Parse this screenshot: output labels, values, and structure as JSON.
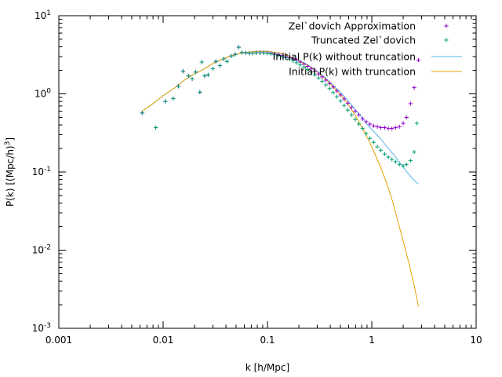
{
  "chart_data": {
    "type": "scatter",
    "xlabel": "k [h/Mpc]",
    "ylabel_parts": [
      "P(k) [(Mpc/h)",
      "3",
      "]"
    ],
    "x_scale": "log",
    "y_scale": "log",
    "xlim": [
      0.001,
      10
    ],
    "ylim": [
      0.001,
      10
    ],
    "grid": false,
    "legend_position": "top-right",
    "x_ticks": [
      {
        "value": 0.001,
        "label": "0.001"
      },
      {
        "value": 0.01,
        "label": "0.01"
      },
      {
        "value": 0.1,
        "label": "0.1"
      },
      {
        "value": 1,
        "label": "1"
      },
      {
        "value": 10,
        "label": "10"
      }
    ],
    "y_ticks": [
      {
        "value": 0.001,
        "base": "10",
        "exp": "-3"
      },
      {
        "value": 0.01,
        "base": "10",
        "exp": "-2"
      },
      {
        "value": 0.1,
        "base": "10",
        "exp": "-1"
      },
      {
        "value": 1,
        "base": "10",
        "exp": "0"
      },
      {
        "value": 10,
        "base": "10",
        "exp": "1"
      }
    ],
    "series": [
      {
        "name": "Zel`dovich Approximation",
        "style": "points",
        "color": "#9400d3",
        "points": [
          [
            0.0063,
            0.57
          ],
          [
            0.0085,
            0.37
          ],
          [
            0.0105,
            0.8
          ],
          [
            0.0125,
            0.87
          ],
          [
            0.014,
            1.25
          ],
          [
            0.0155,
            1.95
          ],
          [
            0.0175,
            1.7
          ],
          [
            0.019,
            1.55
          ],
          [
            0.0205,
            1.9
          ],
          [
            0.0225,
            1.05
          ],
          [
            0.0235,
            2.55
          ],
          [
            0.025,
            1.7
          ],
          [
            0.027,
            1.75
          ],
          [
            0.03,
            2.1
          ],
          [
            0.032,
            2.6
          ],
          [
            0.035,
            2.3
          ],
          [
            0.038,
            2.8
          ],
          [
            0.041,
            2.6
          ],
          [
            0.045,
            3.05
          ],
          [
            0.049,
            3.2
          ],
          [
            0.053,
            3.95
          ],
          [
            0.057,
            3.4
          ],
          [
            0.062,
            3.35
          ],
          [
            0.067,
            3.3
          ],
          [
            0.072,
            3.3
          ],
          [
            0.078,
            3.35
          ],
          [
            0.085,
            3.35
          ],
          [
            0.092,
            3.35
          ],
          [
            0.1,
            3.35
          ],
          [
            0.108,
            3.3
          ],
          [
            0.117,
            3.25
          ],
          [
            0.127,
            3.2
          ],
          [
            0.138,
            3.1
          ],
          [
            0.15,
            3.0
          ],
          [
            0.162,
            2.9
          ],
          [
            0.176,
            2.8
          ],
          [
            0.19,
            2.7
          ],
          [
            0.206,
            2.55
          ],
          [
            0.224,
            2.4
          ],
          [
            0.243,
            2.25
          ],
          [
            0.263,
            2.1
          ],
          [
            0.285,
            1.95
          ],
          [
            0.309,
            1.8
          ],
          [
            0.335,
            1.65
          ],
          [
            0.363,
            1.5
          ],
          [
            0.394,
            1.36
          ],
          [
            0.427,
            1.22
          ],
          [
            0.463,
            1.09
          ],
          [
            0.502,
            0.97
          ],
          [
            0.544,
            0.86
          ],
          [
            0.59,
            0.76
          ],
          [
            0.64,
            0.67
          ],
          [
            0.694,
            0.6
          ],
          [
            0.752,
            0.54
          ],
          [
            0.816,
            0.48
          ],
          [
            0.885,
            0.44
          ],
          [
            0.96,
            0.41
          ],
          [
            1.04,
            0.39
          ],
          [
            1.13,
            0.38
          ],
          [
            1.22,
            0.37
          ],
          [
            1.33,
            0.37
          ],
          [
            1.44,
            0.36
          ],
          [
            1.56,
            0.36
          ],
          [
            1.69,
            0.37
          ],
          [
            1.84,
            0.38
          ],
          [
            2.0,
            0.42
          ],
          [
            2.15,
            0.5
          ],
          [
            2.35,
            0.75
          ],
          [
            2.55,
            1.2
          ],
          [
            2.8,
            2.7
          ]
        ]
      },
      {
        "name": "Truncated Zel`dovich",
        "style": "points",
        "color": "#009e73",
        "points": [
          [
            0.0063,
            0.57
          ],
          [
            0.0085,
            0.37
          ],
          [
            0.0105,
            0.8
          ],
          [
            0.0125,
            0.87
          ],
          [
            0.014,
            1.25
          ],
          [
            0.0155,
            1.95
          ],
          [
            0.0175,
            1.7
          ],
          [
            0.019,
            1.55
          ],
          [
            0.0205,
            1.9
          ],
          [
            0.0225,
            1.05
          ],
          [
            0.0235,
            2.55
          ],
          [
            0.025,
            1.7
          ],
          [
            0.027,
            1.75
          ],
          [
            0.03,
            2.1
          ],
          [
            0.032,
            2.6
          ],
          [
            0.035,
            2.3
          ],
          [
            0.038,
            2.8
          ],
          [
            0.041,
            2.6
          ],
          [
            0.045,
            3.05
          ],
          [
            0.049,
            3.2
          ],
          [
            0.053,
            3.95
          ],
          [
            0.057,
            3.4
          ],
          [
            0.062,
            3.35
          ],
          [
            0.067,
            3.3
          ],
          [
            0.072,
            3.3
          ],
          [
            0.078,
            3.35
          ],
          [
            0.085,
            3.35
          ],
          [
            0.092,
            3.35
          ],
          [
            0.1,
            3.3
          ],
          [
            0.108,
            3.25
          ],
          [
            0.117,
            3.2
          ],
          [
            0.127,
            3.1
          ],
          [
            0.138,
            3.0
          ],
          [
            0.15,
            2.9
          ],
          [
            0.162,
            2.8
          ],
          [
            0.176,
            2.65
          ],
          [
            0.19,
            2.5
          ],
          [
            0.206,
            2.35
          ],
          [
            0.224,
            2.2
          ],
          [
            0.243,
            2.05
          ],
          [
            0.263,
            1.9
          ],
          [
            0.285,
            1.75
          ],
          [
            0.309,
            1.6
          ],
          [
            0.335,
            1.45
          ],
          [
            0.363,
            1.3
          ],
          [
            0.394,
            1.17
          ],
          [
            0.427,
            1.04
          ],
          [
            0.463,
            0.92
          ],
          [
            0.502,
            0.81
          ],
          [
            0.544,
            0.71
          ],
          [
            0.59,
            0.62
          ],
          [
            0.64,
            0.54
          ],
          [
            0.694,
            0.47
          ],
          [
            0.752,
            0.41
          ],
          [
            0.816,
            0.36
          ],
          [
            0.885,
            0.31
          ],
          [
            0.96,
            0.27
          ],
          [
            1.04,
            0.24
          ],
          [
            1.13,
            0.21
          ],
          [
            1.22,
            0.19
          ],
          [
            1.33,
            0.17
          ],
          [
            1.44,
            0.155
          ],
          [
            1.56,
            0.145
          ],
          [
            1.69,
            0.135
          ],
          [
            1.84,
            0.125
          ],
          [
            2.0,
            0.12
          ],
          [
            2.15,
            0.125
          ],
          [
            2.35,
            0.14
          ],
          [
            2.55,
            0.18
          ],
          [
            2.7,
            0.42
          ]
        ]
      },
      {
        "name": "Initial P(k) without truncation",
        "style": "line",
        "color": "#56b4e9",
        "points": [
          [
            0.0063,
            0.6
          ],
          [
            0.008,
            0.75
          ],
          [
            0.01,
            0.95
          ],
          [
            0.013,
            1.2
          ],
          [
            0.016,
            1.5
          ],
          [
            0.02,
            1.8
          ],
          [
            0.025,
            2.1
          ],
          [
            0.03,
            2.45
          ],
          [
            0.04,
            2.9
          ],
          [
            0.05,
            3.2
          ],
          [
            0.06,
            3.35
          ],
          [
            0.07,
            3.45
          ],
          [
            0.08,
            3.5
          ],
          [
            0.09,
            3.52
          ],
          [
            0.1,
            3.5
          ],
          [
            0.12,
            3.4
          ],
          [
            0.14,
            3.25
          ],
          [
            0.16,
            3.05
          ],
          [
            0.2,
            2.7
          ],
          [
            0.25,
            2.3
          ],
          [
            0.3,
            1.95
          ],
          [
            0.35,
            1.65
          ],
          [
            0.4,
            1.4
          ],
          [
            0.5,
            1.05
          ],
          [
            0.6,
            0.8
          ],
          [
            0.7,
            0.62
          ],
          [
            0.8,
            0.5
          ],
          [
            0.9,
            0.41
          ],
          [
            1.0,
            0.35
          ],
          [
            1.2,
            0.27
          ],
          [
            1.4,
            0.21
          ],
          [
            1.6,
            0.17
          ],
          [
            1.8,
            0.14
          ],
          [
            2.0,
            0.115
          ],
          [
            2.2,
            0.098
          ],
          [
            2.5,
            0.08
          ],
          [
            2.8,
            0.07
          ]
        ]
      },
      {
        "name": "Initial P(k) with truncation",
        "style": "line",
        "color": "#e69f00",
        "points": [
          [
            0.0063,
            0.6
          ],
          [
            0.008,
            0.75
          ],
          [
            0.01,
            0.95
          ],
          [
            0.013,
            1.2
          ],
          [
            0.016,
            1.5
          ],
          [
            0.02,
            1.8
          ],
          [
            0.025,
            2.1
          ],
          [
            0.03,
            2.45
          ],
          [
            0.04,
            2.9
          ],
          [
            0.05,
            3.2
          ],
          [
            0.06,
            3.35
          ],
          [
            0.07,
            3.45
          ],
          [
            0.08,
            3.5
          ],
          [
            0.09,
            3.52
          ],
          [
            0.1,
            3.5
          ],
          [
            0.12,
            3.4
          ],
          [
            0.14,
            3.25
          ],
          [
            0.16,
            3.05
          ],
          [
            0.2,
            2.65
          ],
          [
            0.25,
            2.25
          ],
          [
            0.3,
            1.9
          ],
          [
            0.35,
            1.6
          ],
          [
            0.4,
            1.35
          ],
          [
            0.5,
            0.98
          ],
          [
            0.6,
            0.72
          ],
          [
            0.7,
            0.52
          ],
          [
            0.8,
            0.38
          ],
          [
            0.9,
            0.28
          ],
          [
            1.0,
            0.21
          ],
          [
            1.2,
            0.12
          ],
          [
            1.4,
            0.07
          ],
          [
            1.6,
            0.04
          ],
          [
            1.8,
            0.022
          ],
          [
            2.0,
            0.013
          ],
          [
            2.2,
            0.008
          ],
          [
            2.5,
            0.004
          ],
          [
            2.8,
            0.0019
          ]
        ]
      }
    ]
  }
}
